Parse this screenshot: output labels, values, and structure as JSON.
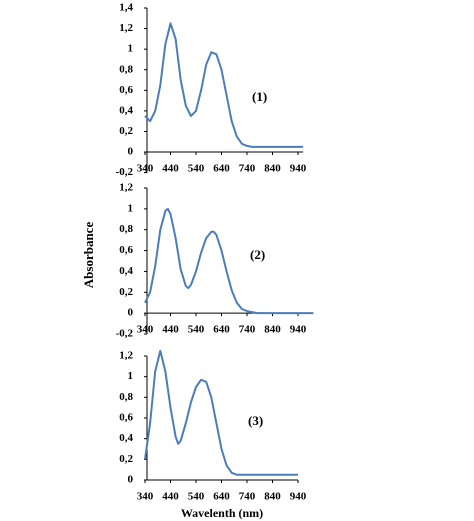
{
  "figure": {
    "ylabel": "Absorbance",
    "xlabel": "Wavelenth (nm)"
  },
  "chart_data": [
    {
      "type": "line",
      "annotation": "(1)",
      "x": [
        340,
        360,
        380,
        400,
        420,
        440,
        460,
        480,
        500,
        520,
        540,
        560,
        580,
        600,
        620,
        640,
        660,
        680,
        700,
        720,
        740,
        760,
        780,
        800,
        840,
        880,
        920,
        960
      ],
      "series": [
        {
          "color": "#4a7ebb",
          "values": [
            0.35,
            0.3,
            0.4,
            0.65,
            1.05,
            1.25,
            1.1,
            0.7,
            0.45,
            0.35,
            0.4,
            0.6,
            0.85,
            0.97,
            0.95,
            0.8,
            0.55,
            0.3,
            0.15,
            0.08,
            0.06,
            0.05,
            0.05,
            0.05,
            0.05,
            0.05,
            0.05,
            0.05
          ]
        }
      ],
      "xlim": [
        340,
        960
      ],
      "xticks": [
        340,
        440,
        540,
        640,
        740,
        840,
        940
      ],
      "ylim": [
        -0.2,
        1.4
      ],
      "yticks": [
        {
          "value": -0.2,
          "label": "-0,2"
        },
        0,
        {
          "value": 0.2,
          "label": "0,2"
        },
        {
          "value": 0.4,
          "label": "0,4"
        },
        {
          "value": 0.6,
          "label": "0,6"
        },
        {
          "value": 0.8,
          "label": "0,8"
        },
        1,
        {
          "value": 1.2,
          "label": "1,2"
        },
        {
          "value": 1.4,
          "label": "1,4"
        }
      ]
    },
    {
      "type": "line",
      "annotation": "(2)",
      "x": [
        340,
        360,
        380,
        400,
        420,
        430,
        440,
        460,
        480,
        500,
        510,
        520,
        540,
        560,
        580,
        600,
        610,
        620,
        640,
        660,
        680,
        700,
        720,
        740,
        760,
        780,
        800,
        840,
        880,
        920,
        960,
        1000
      ],
      "series": [
        {
          "color": "#4a7ebb",
          "values": [
            0.1,
            0.2,
            0.45,
            0.8,
            0.98,
            1.0,
            0.95,
            0.72,
            0.42,
            0.26,
            0.24,
            0.27,
            0.4,
            0.58,
            0.72,
            0.78,
            0.78,
            0.75,
            0.6,
            0.4,
            0.22,
            0.1,
            0.04,
            0.02,
            0.01,
            0,
            0,
            0,
            0,
            0,
            0,
            0
          ]
        }
      ],
      "xlim": [
        340,
        1000
      ],
      "xticks": [
        340,
        440,
        540,
        640,
        740,
        840,
        940
      ],
      "ylim": [
        -0.2,
        1.2
      ],
      "yticks": [
        {
          "value": -0.2,
          "label": "-0,2"
        },
        0,
        {
          "value": 0.2,
          "label": "0,2"
        },
        {
          "value": 0.4,
          "label": "0,4"
        },
        {
          "value": 0.6,
          "label": "0,6"
        },
        {
          "value": 0.8,
          "label": "0,8"
        },
        1,
        {
          "value": 1.2,
          "label": "1,2"
        }
      ]
    },
    {
      "type": "line",
      "annotation": "(3)",
      "x": [
        340,
        360,
        380,
        400,
        420,
        440,
        460,
        470,
        480,
        500,
        520,
        540,
        560,
        580,
        600,
        620,
        640,
        660,
        680,
        700,
        720,
        760,
        800,
        840,
        880,
        920,
        940
      ],
      "series": [
        {
          "color": "#4a7ebb",
          "values": [
            0.2,
            0.55,
            1.05,
            1.25,
            1.05,
            0.7,
            0.42,
            0.35,
            0.38,
            0.55,
            0.75,
            0.9,
            0.97,
            0.95,
            0.8,
            0.55,
            0.3,
            0.14,
            0.07,
            0.05,
            0.05,
            0.05,
            0.05,
            0.05,
            0.05,
            0.05,
            0.05
          ]
        }
      ],
      "xlim": [
        340,
        940
      ],
      "xticks": [
        340,
        440,
        540,
        640,
        740,
        840,
        940
      ],
      "ylim": [
        0,
        1.2
      ],
      "yticks": [
        0,
        {
          "value": 0.2,
          "label": "0,2"
        },
        {
          "value": 0.4,
          "label": "0,4"
        },
        {
          "value": 0.6,
          "label": "0,6"
        },
        {
          "value": 0.8,
          "label": "0,8"
        },
        1,
        {
          "value": 1.2,
          "label": "1,2"
        }
      ]
    }
  ]
}
